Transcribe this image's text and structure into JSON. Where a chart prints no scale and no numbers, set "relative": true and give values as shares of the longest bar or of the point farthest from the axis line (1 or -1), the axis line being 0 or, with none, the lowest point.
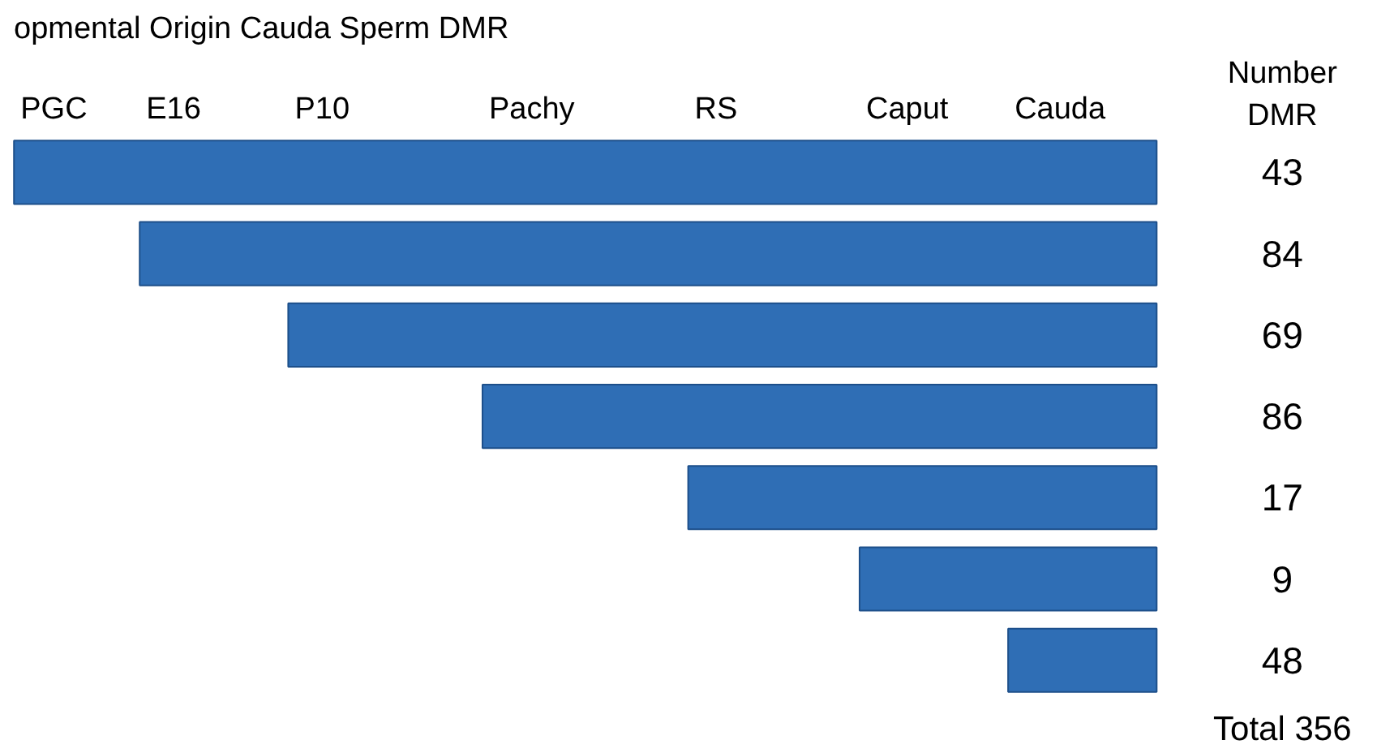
{
  "chart_data": {
    "type": "bar",
    "orientation": "horizontal",
    "relative": true,
    "title": "opmental Origin Cauda Sperm DMR",
    "categories": [
      "43",
      "84",
      "69",
      "86",
      "17",
      "9",
      "48"
    ],
    "values": [
      1,
      0.89,
      0.76,
      0.59,
      0.41,
      0.26,
      0.13
    ],
    "color": "#2f6eb5",
    "annotations": [
      "PGC",
      "E16",
      "P10",
      "Pachy",
      "RS",
      "Caput",
      "Cauda",
      "Number\nDMR",
      "Total 356"
    ],
    "grid": false
  }
}
